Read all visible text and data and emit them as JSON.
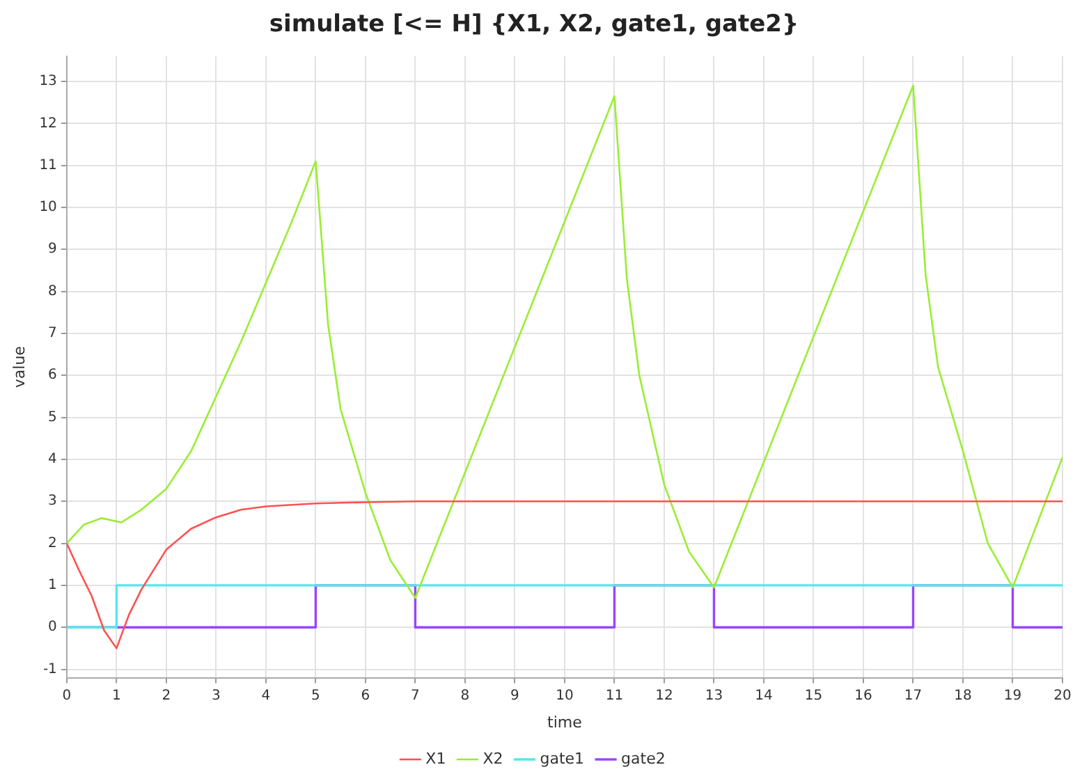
{
  "chart_data": {
    "type": "line",
    "title": "simulate [<= H] {X1, X2, gate1, gate2}",
    "xlabel": "time",
    "ylabel": "value",
    "xlim": [
      0,
      20
    ],
    "xticks": [
      0,
      1,
      2,
      3,
      4,
      5,
      6,
      7,
      8,
      9,
      10,
      11,
      12,
      13,
      14,
      15,
      16,
      17,
      18,
      19,
      20
    ],
    "ylim": [
      -1.2,
      13.6
    ],
    "yticks": [
      -1,
      0,
      1,
      2,
      3,
      4,
      5,
      6,
      7,
      8,
      9,
      10,
      11,
      12,
      13
    ],
    "grid": true,
    "legend": "bottom",
    "series": [
      {
        "name": "X1",
        "color": "#ff5050",
        "x": [
          0,
          0.25,
          0.5,
          0.75,
          1,
          1.25,
          1.5,
          2,
          2.5,
          3,
          3.5,
          4,
          5,
          6,
          7,
          20
        ],
        "values": [
          2,
          1.35,
          0.75,
          -0.07,
          -0.5,
          0.3,
          0.9,
          1.85,
          2.35,
          2.62,
          2.8,
          2.88,
          2.95,
          2.98,
          3,
          3
        ]
      },
      {
        "name": "X2",
        "color": "#99ee33",
        "x": [
          0,
          0.35,
          0.7,
          1.1,
          1.5,
          2,
          2.5,
          3,
          3.5,
          4,
          4.5,
          5,
          5.25,
          5.5,
          6,
          6.5,
          7,
          11,
          11.25,
          11.5,
          12,
          12.5,
          13,
          17,
          17.25,
          17.5,
          18,
          18.5,
          19,
          20
        ],
        "values": [
          2,
          2.45,
          2.6,
          2.5,
          2.8,
          3.3,
          4.2,
          5.5,
          6.8,
          8.2,
          9.6,
          11.1,
          7.2,
          5.2,
          3.2,
          1.6,
          0.7,
          12.65,
          8.3,
          6,
          3.4,
          1.8,
          0.95,
          12.9,
          8.4,
          6.2,
          4.2,
          2,
          0.95,
          4.05
        ]
      },
      {
        "name": "gate1",
        "type": "step",
        "color": "#55e8e8",
        "x": [
          0,
          1,
          20
        ],
        "values": [
          0,
          1,
          1
        ]
      },
      {
        "name": "gate2",
        "type": "step",
        "color": "#9944ff",
        "x": [
          0,
          5,
          7,
          11,
          13,
          17,
          19,
          20
        ],
        "values": [
          0,
          1,
          0,
          1,
          0,
          1,
          0,
          0
        ]
      }
    ]
  }
}
